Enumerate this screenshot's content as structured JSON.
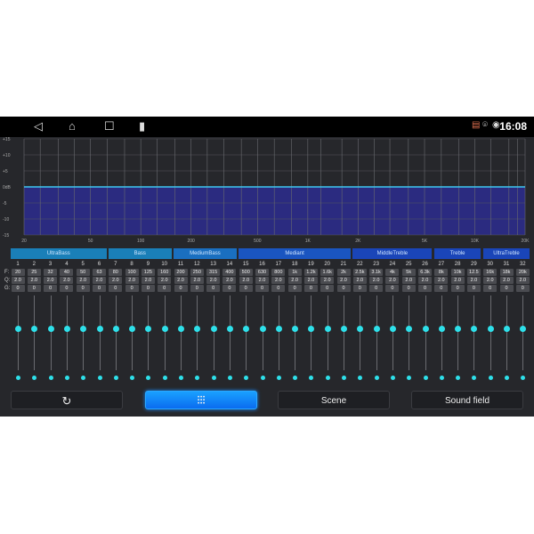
{
  "statusbar": {
    "time": "16:08",
    "nav_icons": [
      "back-icon",
      "home-icon",
      "recents-icon",
      "usb-icon"
    ],
    "status_icons": [
      "cast-icon",
      "location-icon",
      "hotspot-icon"
    ]
  },
  "chart_data": {
    "type": "area",
    "x_scale": "log",
    "xlim": [
      20,
      20000
    ],
    "ylim": [
      -15,
      15
    ],
    "y_ticks": [
      "+15",
      "+10",
      "+5",
      "0dB",
      "-5",
      "-10",
      "-15"
    ],
    "x_ticks": [
      "20",
      "50",
      "100",
      "200",
      "500",
      "1K",
      "2K",
      "5K",
      "10K",
      "20K"
    ],
    "x_tick_values": [
      20,
      50,
      100,
      200,
      500,
      1000,
      2000,
      5000,
      10000,
      20000
    ],
    "series": [
      {
        "x": [
          20,
          20000
        ],
        "y": [
          0,
          0
        ]
      }
    ],
    "grid": true,
    "line_color": "#3ec8f0",
    "fill_color": "#2b2b80"
  },
  "groups": [
    {
      "label": "UltraBass",
      "from": 1,
      "to": 6,
      "color": "#1a7fb8"
    },
    {
      "label": "Bass",
      "from": 7,
      "to": 10,
      "color": "#1a7fb8"
    },
    {
      "label": "MediumBass",
      "from": 11,
      "to": 14,
      "color": "#1a6fc0"
    },
    {
      "label": "Mediant",
      "from": 15,
      "to": 21,
      "color": "#1a55c0"
    },
    {
      "label": "MiddleTreble",
      "from": 22,
      "to": 26,
      "color": "#1a45b8"
    },
    {
      "label": "Treble",
      "from": 27,
      "to": 29,
      "color": "#1a45b8"
    },
    {
      "label": "UltraTreble",
      "from": 30,
      "to": 32,
      "color": "#1a45b8"
    }
  ],
  "row_labels": {
    "f": "F:",
    "q": "Q:",
    "g": "G:"
  },
  "bands": {
    "f": [
      "20",
      "25",
      "32",
      "40",
      "50",
      "63",
      "80",
      "100",
      "125",
      "160",
      "200",
      "250",
      "315",
      "400",
      "500",
      "630",
      "800",
      "1k",
      "1.2k",
      "1.6k",
      "2k",
      "2.5k",
      "3.1k",
      "4k",
      "5k",
      "6.3k",
      "8k",
      "10k",
      "12.5",
      "16k",
      "18k",
      "20k"
    ],
    "q": "2.0",
    "g": "0",
    "gain_db": 0
  },
  "buttons": {
    "reset": "reset-icon",
    "eq": "equalizer-icon",
    "scene": "Scene",
    "sound_field": "Sound field"
  }
}
